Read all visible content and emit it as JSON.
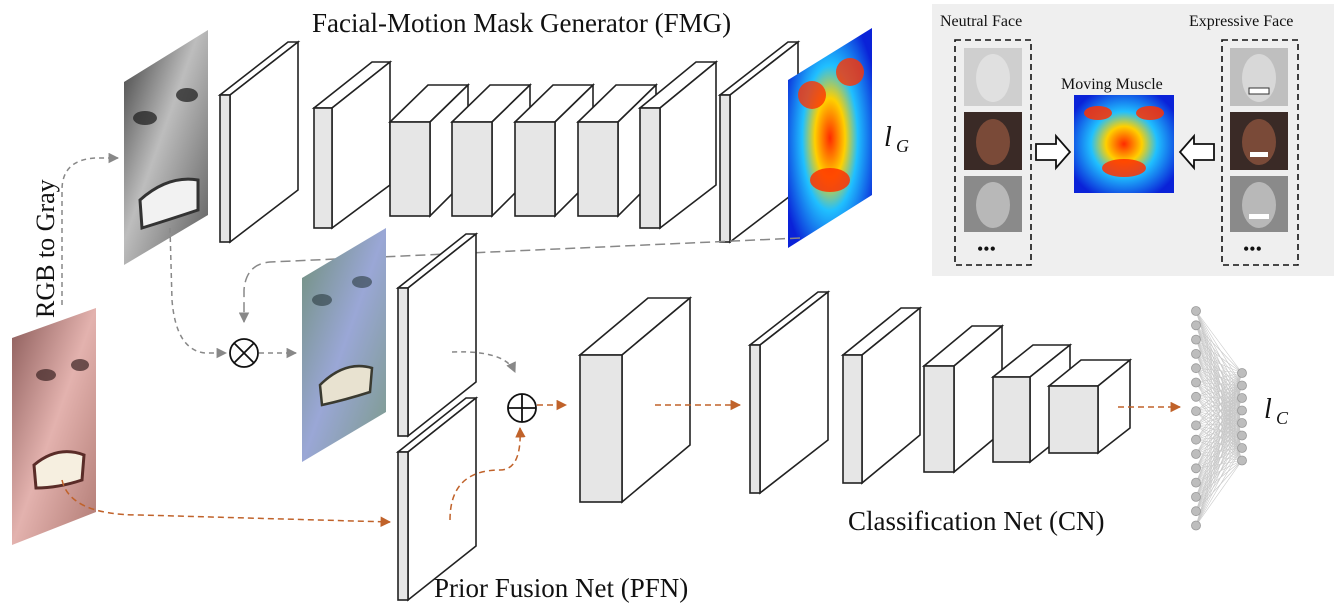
{
  "titles": {
    "fmg": "Facial-Motion Mask Generator (FMG)",
    "pfn": "Prior Fusion Net (PFN)",
    "cn": "Classification Net (CN)",
    "rgb_to_gray": "RGB to Gray"
  },
  "losses": {
    "lg_main": "l",
    "lg_sub": "G",
    "lc_main": "l",
    "lc_sub": "C"
  },
  "inset": {
    "neutral_label": "Neutral Face",
    "expressive_label": "Expressive Face",
    "moving_label": "Moving Muscle",
    "ellipsis_left": "•••",
    "ellipsis_right": "•••"
  },
  "operators": {
    "multiply": "⊗",
    "add": "⊕"
  },
  "colors": {
    "brown_arrow": "#c0622a",
    "gray_arrow": "#888888",
    "layer_face": "#e6e6e6",
    "inset_bg": "#efefef"
  }
}
